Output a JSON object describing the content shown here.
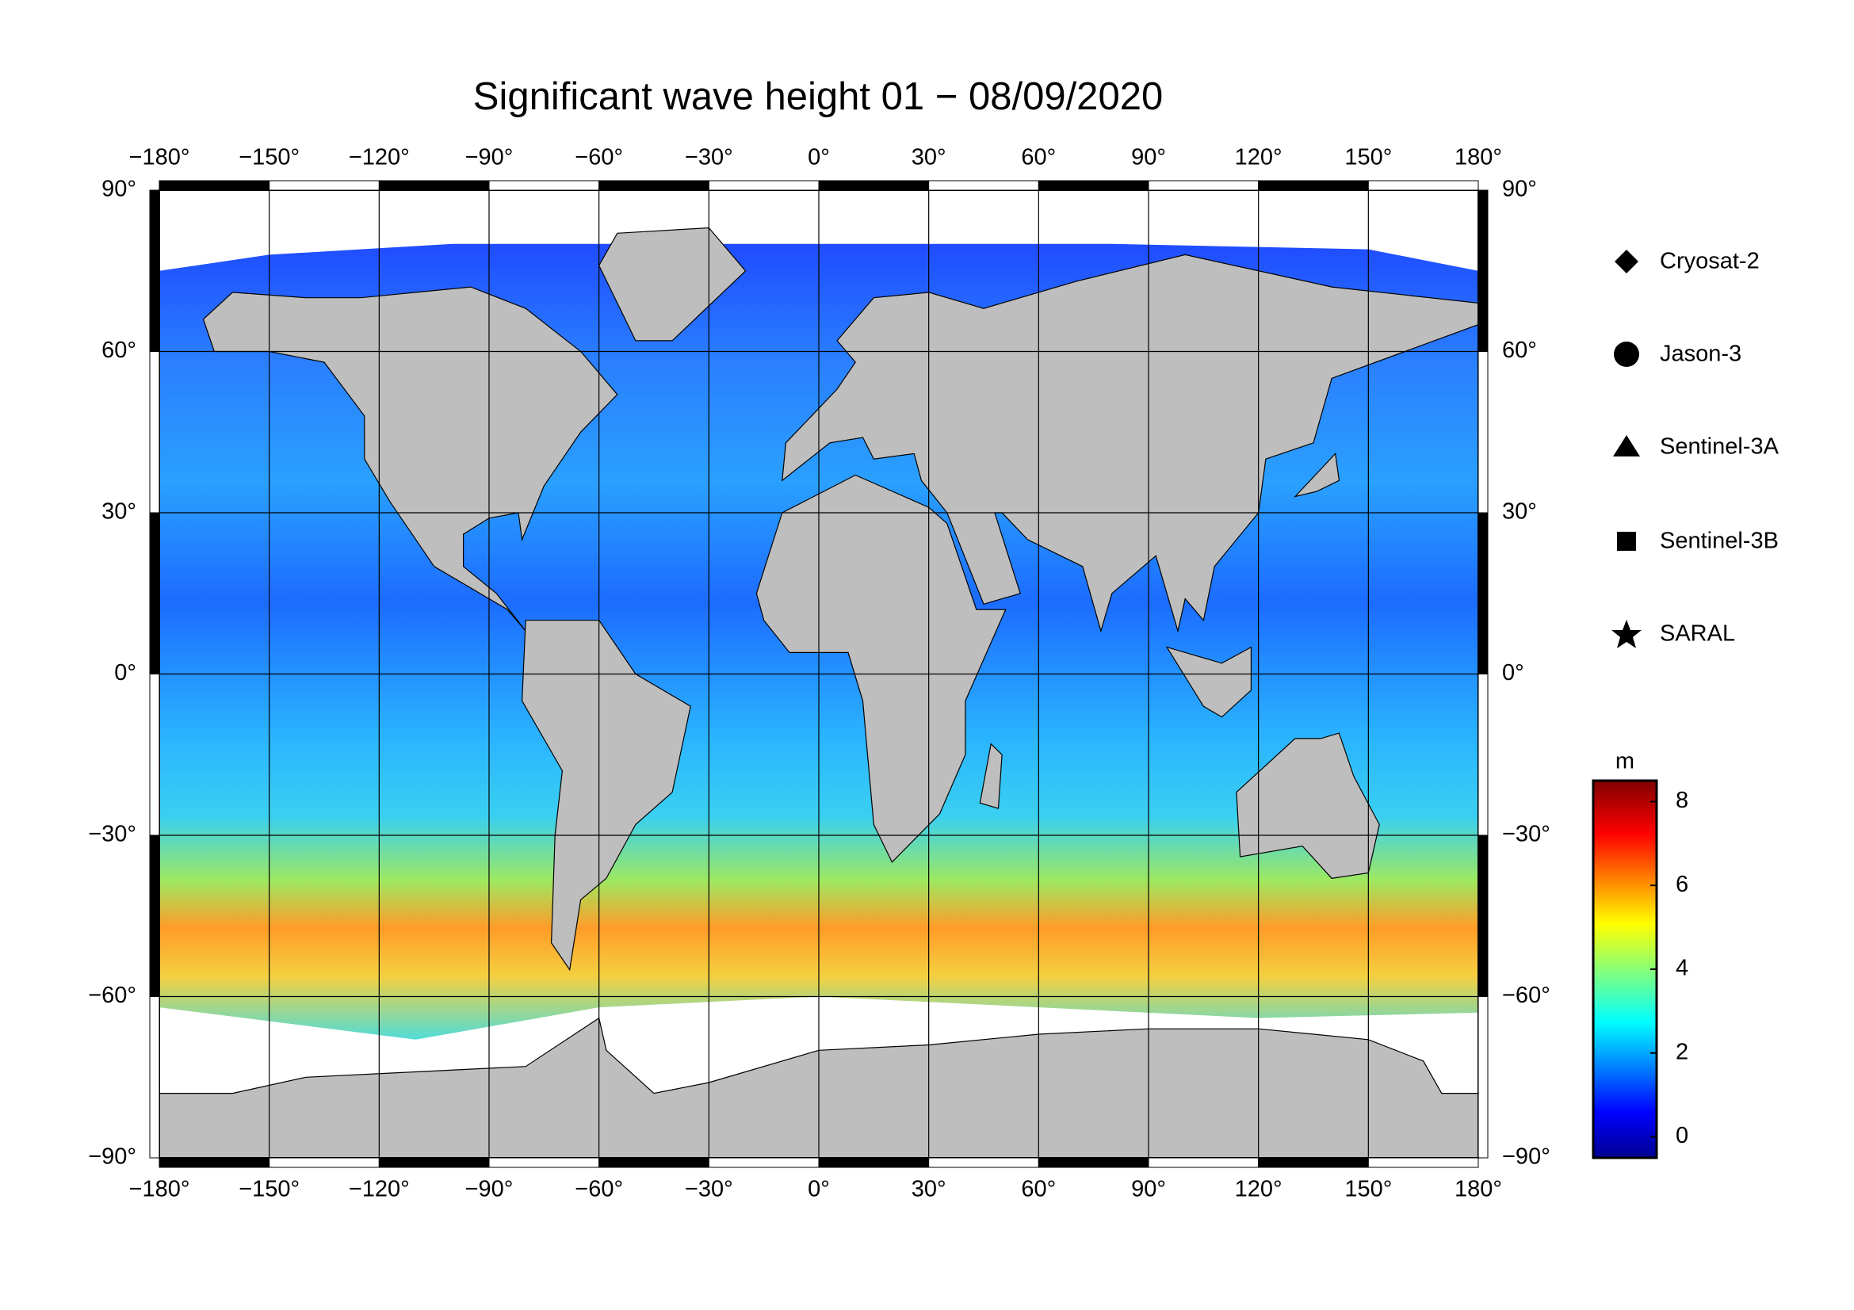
{
  "title": "Significant wave height 01 − 08/09/2020",
  "map": {
    "lon_ticks": [
      {
        "value": -180,
        "label": "−180°"
      },
      {
        "value": -150,
        "label": "−150°"
      },
      {
        "value": -120,
        "label": "−120°"
      },
      {
        "value": -90,
        "label": "−90°"
      },
      {
        "value": -60,
        "label": "−60°"
      },
      {
        "value": -30,
        "label": "−30°"
      },
      {
        "value": 0,
        "label": "0°"
      },
      {
        "value": 30,
        "label": "30°"
      },
      {
        "value": 60,
        "label": "60°"
      },
      {
        "value": 90,
        "label": "90°"
      },
      {
        "value": 120,
        "label": "120°"
      },
      {
        "value": 150,
        "label": "150°"
      },
      {
        "value": 180,
        "label": "180°"
      }
    ],
    "lat_ticks": [
      {
        "value": 90,
        "label": "90°"
      },
      {
        "value": 60,
        "label": "60°"
      },
      {
        "value": 30,
        "label": "30°"
      },
      {
        "value": 0,
        "label": "0°"
      },
      {
        "value": -30,
        "label": "−30°"
      },
      {
        "value": -60,
        "label": "−60°"
      },
      {
        "value": -90,
        "label": "−90°"
      }
    ]
  },
  "legend": [
    "Cryosat-2",
    "Jason-3",
    "Sentinel-3A",
    "Sentinel-3B",
    "SARAL"
  ],
  "colorbar": {
    "label": "m",
    "lim": [
      -0.5,
      8.5
    ],
    "ticks": [
      0,
      2,
      4,
      6,
      8
    ]
  }
}
